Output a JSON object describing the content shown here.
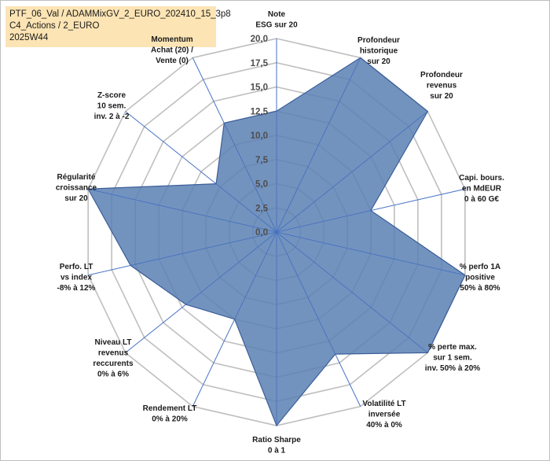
{
  "header": {
    "line1": "PTF_06_Val / ADAMMixGV_2_EURO_202410_15_3p8",
    "line2": "C4_Actions / 2_EURO",
    "line3": "2025W44"
  },
  "chart_data": {
    "type": "radar",
    "rmin": 0,
    "rmax": 20,
    "ticks": [
      "0,0",
      "2,5",
      "5,0",
      "7,5",
      "10,0",
      "12,5",
      "15,0",
      "17,5",
      "20,0"
    ],
    "tick_values": [
      0,
      2.5,
      5,
      7.5,
      10,
      12.5,
      15,
      17.5,
      20
    ],
    "grid": true,
    "fill_color": "#5b80b4",
    "line_color": "#3a5e9a",
    "spoke_color": "#4472c4",
    "grid_color": "#bfbfbf",
    "axes": [
      {
        "label": [
          "Note",
          "ESG sur 20"
        ],
        "value": 12.5
      },
      {
        "label": [
          "Profondeur",
          "historique",
          "sur 20"
        ],
        "value": 20
      },
      {
        "label": [
          "Profondeur",
          "revenus",
          "sur 20"
        ],
        "value": 20
      },
      {
        "label": [
          "Capi. bours.",
          "en MdEUR",
          "0 à 60 G€"
        ],
        "value": 10
      },
      {
        "label": [
          "% perfo 1A",
          "positive",
          "50% à 80%"
        ],
        "value": 20
      },
      {
        "label": [
          "% perte max.",
          "sur 1 sem.",
          "inv. 50% à 20%"
        ],
        "value": 20
      },
      {
        "label": [
          "Volatilité LT",
          "inversée",
          "40% à 0%"
        ],
        "value": 14
      },
      {
        "label": [
          "Ratio Sharpe",
          "0 à 1"
        ],
        "value": 20
      },
      {
        "label": [
          "Rendement LT",
          "0% à 20%"
        ],
        "value": 10
      },
      {
        "label": [
          "Niveau LT",
          "revenus",
          "reccurents",
          "0% à 6%"
        ],
        "value": 12
      },
      {
        "label": [
          "Perfo. LT",
          "vs index",
          "-8% à 12%"
        ],
        "value": 15.5
      },
      {
        "label": [
          "Régularité",
          "croissance",
          "sur 20"
        ],
        "value": 20
      },
      {
        "label": [
          "Z-score",
          "10 sem.",
          "inv. 2 à -2"
        ],
        "value": 8
      },
      {
        "label": [
          "Momentum",
          "Achat (20) /",
          "Vente (0)"
        ],
        "value": 12.5
      }
    ]
  }
}
